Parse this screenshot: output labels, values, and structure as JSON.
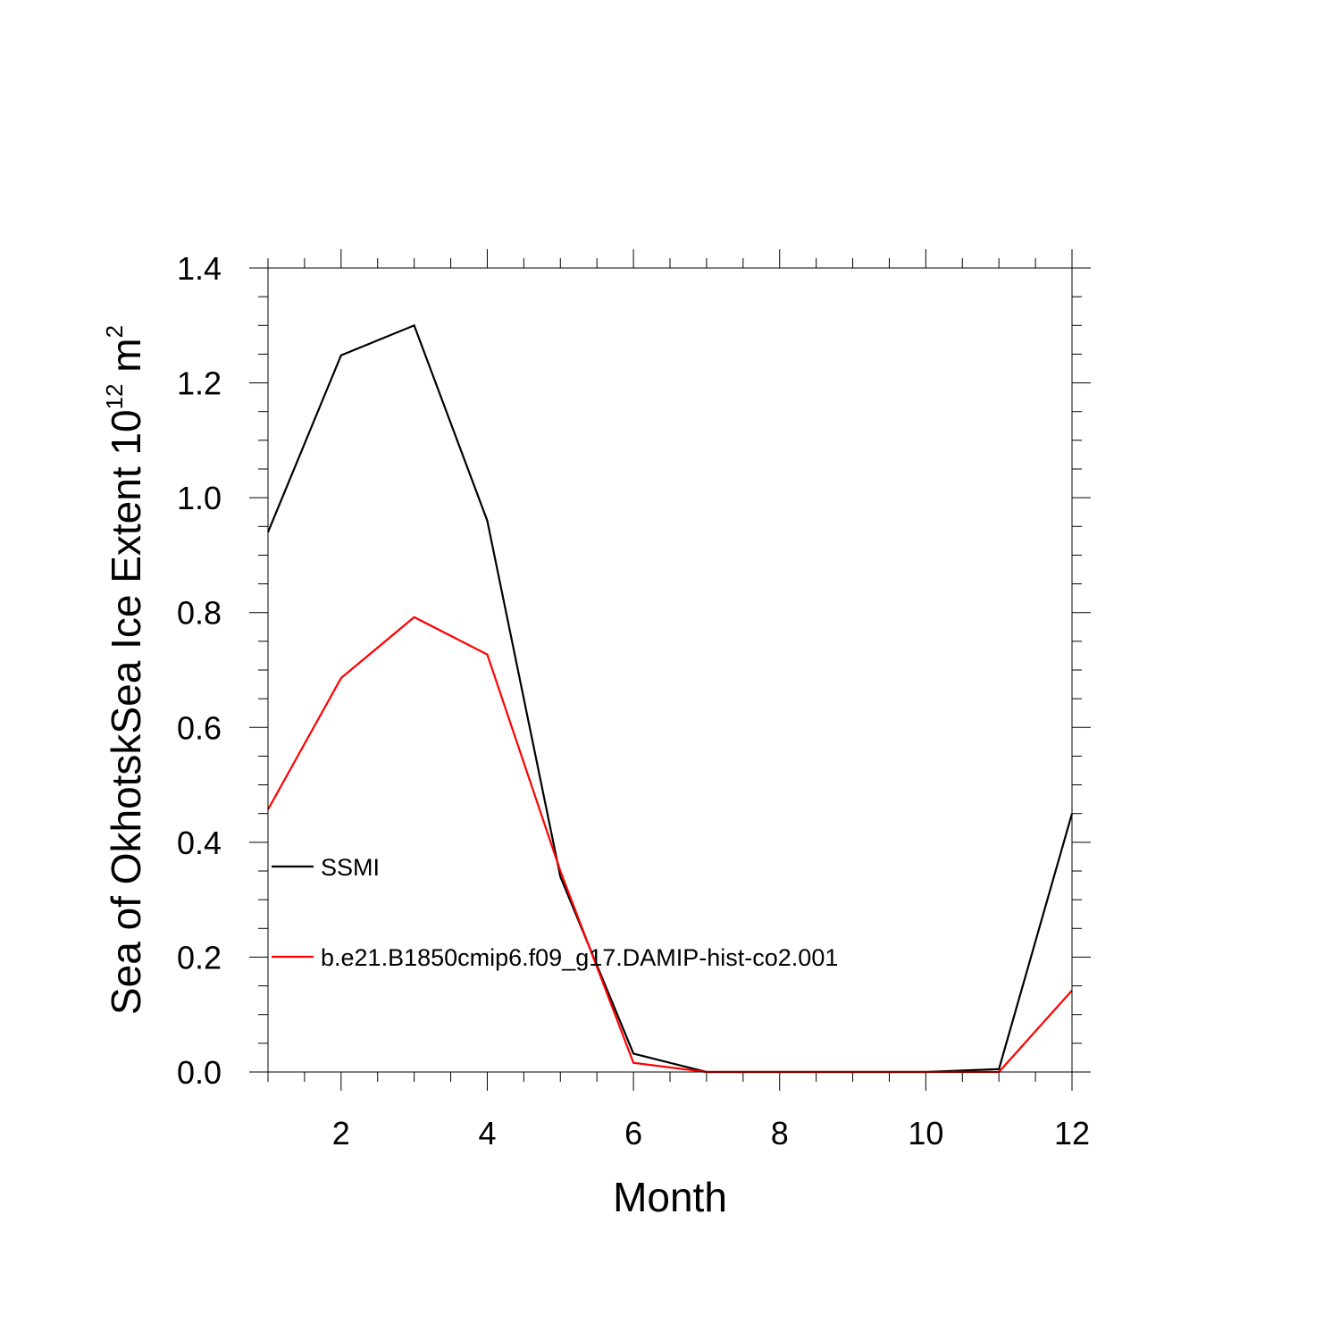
{
  "chart_data": {
    "type": "line",
    "xlabel": "Month",
    "ylabel_main": "Sea of OkhotskSea Ice Extent 10",
    "ylabel_exp": "12",
    "ylabel_unit": " m",
    "ylabel_unit_exp": "2",
    "xlim": [
      1,
      12
    ],
    "ylim": [
      0,
      1.4
    ],
    "x_major_ticks": [
      2,
      4,
      6,
      8,
      10,
      12
    ],
    "x_minor_step": 0.5,
    "y_major_ticks": [
      0.0,
      0.2,
      0.4,
      0.6,
      0.8,
      1.0,
      1.2,
      1.4
    ],
    "y_minor_step": 0.05,
    "x": [
      1,
      2,
      3,
      4,
      5,
      6,
      7,
      8,
      9,
      10,
      11,
      12
    ],
    "grid": false,
    "legend_position": "left-middle",
    "series": [
      {
        "name": "SSMI",
        "color": "#000000",
        "values": [
          0.94,
          1.248,
          1.3,
          0.96,
          0.34,
          0.032,
          0.0,
          0.0,
          0.0,
          0.0,
          0.005,
          0.45
        ]
      },
      {
        "name": "b.e21.B1850cmip6.f09_g17.DAMIP-hist-co2.001",
        "color": "#ff0000",
        "values": [
          0.457,
          0.686,
          0.792,
          0.727,
          0.35,
          0.016,
          0.0,
          0.0,
          0.0,
          0.0,
          0.0,
          0.142
        ]
      }
    ]
  }
}
